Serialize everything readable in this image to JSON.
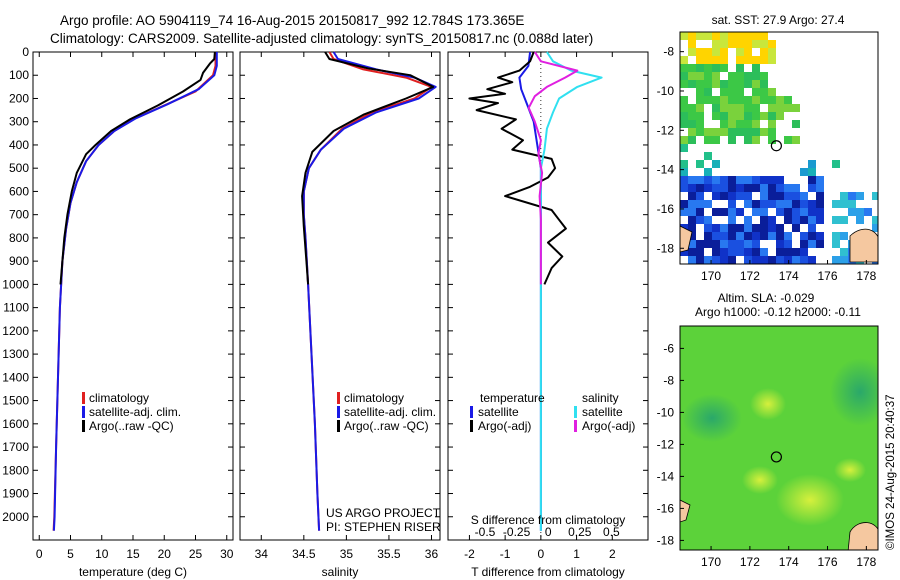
{
  "header": {
    "line1": "Argo profile: AO 5904119_74 16-Aug-2015 20150817_992 12.784S 173.365E",
    "line2": "Climatology: CARS2009. Satellite-adjusted climatology: synTS_20150817.nc (0.088d later)"
  },
  "footer": {
    "project": "US ARGO PROJECT",
    "pi": "PI: STEPHEN RISER",
    "stamp": "©IMOS 24-Aug-2015 20:40:37"
  },
  "colors": {
    "climatology": "#e02020",
    "satellite": "#1a1ae6",
    "argo": "#000000",
    "sal_satellite": "#30e0f0",
    "sal_argo": "#e020e0"
  },
  "legends": {
    "temp": [
      "climatology",
      "satellite-adj. clim.",
      "Argo(..raw -QC)"
    ],
    "sal": [
      "climatology",
      "satellite-adj. clim.",
      "Argo(..raw -QC)"
    ],
    "diff_t_title": "temperature",
    "diff_s_title": "salinity",
    "diff_t": [
      "satellite",
      "Argo(-adj)"
    ],
    "diff_s": [
      "satellite",
      "Argo(-adj)"
    ]
  },
  "chart_data": [
    {
      "type": "line",
      "panel": "temperature",
      "xlabel": "temperature (deg C)",
      "ylabel": "",
      "xlim": [
        -1,
        31
      ],
      "ylim": [
        2100,
        0
      ],
      "xticks": [
        0,
        5,
        10,
        15,
        20,
        25,
        30
      ],
      "yticks": [
        0,
        100,
        200,
        300,
        400,
        500,
        600,
        700,
        800,
        900,
        1000,
        1100,
        1200,
        1300,
        1400,
        1500,
        1600,
        1700,
        1800,
        1900,
        2000
      ],
      "series": [
        {
          "name": "climatology",
          "color_key": "climatology",
          "points": [
            [
              28.2,
              0
            ],
            [
              28.2,
              60
            ],
            [
              27.8,
              100
            ],
            [
              25,
              170
            ],
            [
              20,
              230
            ],
            [
              15,
              290
            ],
            [
              12,
              340
            ],
            [
              9.5,
              400
            ],
            [
              7.5,
              470
            ],
            [
              6,
              560
            ],
            [
              5,
              650
            ],
            [
              4.3,
              760
            ],
            [
              3.7,
              900
            ],
            [
              3.3,
              1100
            ],
            [
              3,
              1400
            ],
            [
              2.7,
              1700
            ],
            [
              2.4,
              2000
            ],
            [
              2.3,
              2060
            ]
          ]
        },
        {
          "name": "satellite-adj. clim.",
          "color_key": "satellite",
          "points": [
            [
              28.4,
              0
            ],
            [
              28.4,
              60
            ],
            [
              28,
              100
            ],
            [
              25.5,
              160
            ],
            [
              20.5,
              225
            ],
            [
              15.5,
              285
            ],
            [
              12,
              340
            ],
            [
              9.5,
              400
            ],
            [
              7.5,
              470
            ],
            [
              6,
              560
            ],
            [
              5,
              650
            ],
            [
              4.3,
              760
            ],
            [
              3.7,
              900
            ],
            [
              3.3,
              1100
            ],
            [
              3,
              1400
            ],
            [
              2.7,
              1700
            ],
            [
              2.45,
              2000
            ],
            [
              2.35,
              2060
            ]
          ]
        },
        {
          "name": "Argo(..raw -QC)",
          "color_key": "argo",
          "points": [
            [
              28.1,
              0
            ],
            [
              28,
              30
            ],
            [
              27.3,
              50
            ],
            [
              26.2,
              90
            ],
            [
              25.8,
              120
            ],
            [
              23,
              170
            ],
            [
              19,
              230
            ],
            [
              14.5,
              290
            ],
            [
              11.5,
              340
            ],
            [
              9,
              400
            ],
            [
              7.5,
              440
            ],
            [
              6,
              520
            ],
            [
              5.2,
              600
            ],
            [
              4.5,
              700
            ],
            [
              4,
              800
            ],
            [
              3.7,
              900
            ],
            [
              3.4,
              1000
            ]
          ]
        }
      ]
    },
    {
      "type": "line",
      "panel": "salinity",
      "xlabel": "salinity",
      "ylabel": "",
      "xlim": [
        33.75,
        36.1
      ],
      "ylim": [
        2100,
        0
      ],
      "xticks": [
        34,
        34.5,
        35,
        35.5,
        36
      ],
      "series": [
        {
          "name": "climatology",
          "color_key": "climatology",
          "points": [
            [
              34.8,
              0
            ],
            [
              34.85,
              30
            ],
            [
              35.2,
              75
            ],
            [
              35.7,
              110
            ],
            [
              36.0,
              150
            ],
            [
              35.8,
              200
            ],
            [
              35.3,
              260
            ],
            [
              34.95,
              330
            ],
            [
              34.7,
              420
            ],
            [
              34.56,
              500
            ],
            [
              34.5,
              600
            ],
            [
              34.5,
              700
            ],
            [
              34.52,
              800
            ],
            [
              34.55,
              1000
            ],
            [
              34.59,
              1300
            ],
            [
              34.63,
              1600
            ],
            [
              34.66,
              1900
            ],
            [
              34.68,
              2060
            ]
          ]
        },
        {
          "name": "satellite-adj. clim.",
          "color_key": "satellite",
          "points": [
            [
              34.85,
              0
            ],
            [
              34.9,
              30
            ],
            [
              35.35,
              75
            ],
            [
              35.8,
              110
            ],
            [
              36.05,
              150
            ],
            [
              35.85,
              200
            ],
            [
              35.35,
              260
            ],
            [
              34.97,
              330
            ],
            [
              34.7,
              420
            ],
            [
              34.56,
              500
            ],
            [
              34.5,
              600
            ],
            [
              34.5,
              700
            ],
            [
              34.52,
              800
            ],
            [
              34.55,
              1000
            ],
            [
              34.59,
              1300
            ],
            [
              34.63,
              1600
            ],
            [
              34.66,
              1900
            ],
            [
              34.68,
              2060
            ]
          ]
        },
        {
          "name": "Argo(..raw -QC)",
          "color_key": "argo",
          "points": [
            [
              34.75,
              0
            ],
            [
              34.8,
              30
            ],
            [
              35.25,
              70
            ],
            [
              35.75,
              100
            ],
            [
              36.02,
              150
            ],
            [
              35.7,
              200
            ],
            [
              35.2,
              270
            ],
            [
              34.85,
              340
            ],
            [
              34.6,
              430
            ],
            [
              34.52,
              520
            ],
            [
              34.48,
              620
            ],
            [
              34.5,
              750
            ],
            [
              34.53,
              900
            ],
            [
              34.55,
              1000
            ]
          ]
        }
      ]
    },
    {
      "type": "line",
      "panel": "difference",
      "xlabel": "T difference from climatology",
      "top_label": "S difference from climatology",
      "xlim": [
        -2.6,
        3
      ],
      "ylim": [
        2100,
        0
      ],
      "xticks": [
        -2,
        -1,
        0,
        1,
        2
      ],
      "xtick_labels": [
        "-2",
        "-1",
        "0",
        "1",
        "2"
      ],
      "s_xticks": [
        -0.5,
        -0.25,
        0,
        0.25,
        0.5
      ],
      "s_xtick_labels": [
        "-0.5",
        "-0.25",
        "0",
        "0.25",
        "0.5"
      ],
      "series": [
        {
          "name": "temperature satellite",
          "color_key": "satellite",
          "points": [
            [
              -0.3,
              0
            ],
            [
              -0.35,
              60
            ],
            [
              -0.6,
              110
            ],
            [
              -0.55,
              160
            ],
            [
              -0.4,
              220
            ],
            [
              -0.2,
              300
            ],
            [
              -0.1,
              400
            ],
            [
              0,
              500
            ],
            [
              0,
              600
            ],
            [
              0,
              800
            ],
            [
              0,
              1000
            ],
            [
              0,
              1400
            ],
            [
              0,
              2060
            ]
          ]
        },
        {
          "name": "temperature Argo(-adj)",
          "color_key": "argo",
          "points": [
            [
              -0.2,
              0
            ],
            [
              -0.3,
              40
            ],
            [
              -0.6,
              80
            ],
            [
              -1.2,
              110
            ],
            [
              -0.8,
              130
            ],
            [
              -1.5,
              160
            ],
            [
              -1.0,
              180
            ],
            [
              -2.0,
              200
            ],
            [
              -1.2,
              220
            ],
            [
              -1.8,
              250
            ],
            [
              -0.7,
              290
            ],
            [
              -1.1,
              330
            ],
            [
              -0.5,
              380
            ],
            [
              -0.8,
              420
            ],
            [
              0.3,
              460
            ],
            [
              0.4,
              500
            ],
            [
              0.2,
              540
            ],
            [
              -0.3,
              580
            ],
            [
              -1,
              620
            ],
            [
              0.3,
              680
            ],
            [
              0.5,
              720
            ],
            [
              0.7,
              760
            ],
            [
              0.2,
              820
            ],
            [
              0.6,
              880
            ],
            [
              0.3,
              930
            ],
            [
              0.1,
              1000
            ]
          ]
        },
        {
          "name": "salinity satellite",
          "color_key": "sal_satellite",
          "points": [
            [
              0.05,
              0
            ],
            [
              0.1,
              40
            ],
            [
              0.25,
              80
            ],
            [
              0.5,
              110
            ],
            [
              0.3,
              150
            ],
            [
              0.15,
              200
            ],
            [
              0.1,
              260
            ],
            [
              0.05,
              330
            ],
            [
              0.03,
              420
            ],
            [
              0,
              500
            ],
            [
              0,
              700
            ],
            [
              0,
              1000
            ],
            [
              0,
              1400
            ],
            [
              0,
              2060
            ]
          ]
        },
        {
          "name": "salinity Argo(-adj)",
          "color_key": "sal_argo",
          "points": [
            [
              -0.05,
              0
            ],
            [
              0,
              40
            ],
            [
              0.3,
              80
            ],
            [
              0.2,
              110
            ],
            [
              0.05,
              150
            ],
            [
              -0.05,
              190
            ],
            [
              -0.1,
              240
            ],
            [
              -0.05,
              300
            ],
            [
              0,
              380
            ],
            [
              -0.02,
              440
            ],
            [
              0.01,
              520
            ],
            [
              -0.01,
              620
            ],
            [
              0,
              720
            ],
            [
              0,
              850
            ],
            [
              0,
              1000
            ]
          ]
        }
      ]
    },
    {
      "type": "heatmap",
      "panel": "sst-map",
      "title": "sat. SST: 27.9 Argo: 27.4",
      "xticks": [
        170,
        172,
        174,
        176,
        178
      ],
      "yticks": [
        -8,
        -10,
        -12,
        -14,
        -16,
        -18
      ],
      "xlim": [
        168.4,
        178.6
      ],
      "ylim": [
        -18.8,
        -7.0
      ],
      "float_position": [
        173.365,
        -12.784
      ]
    },
    {
      "type": "heatmap",
      "panel": "sla-map",
      "title": "Altim. SLA: -0.029",
      "subtitle": "Argo h1000: -0.12 h2000: -0.11",
      "xticks": [
        170,
        172,
        174,
        176,
        178
      ],
      "yticks": [
        -6,
        -8,
        -10,
        -12,
        -14,
        -16,
        -18
      ],
      "xlim": [
        168.4,
        178.6
      ],
      "ylim": [
        -18.6,
        -4.6
      ],
      "float_position": [
        173.365,
        -12.784
      ]
    }
  ]
}
